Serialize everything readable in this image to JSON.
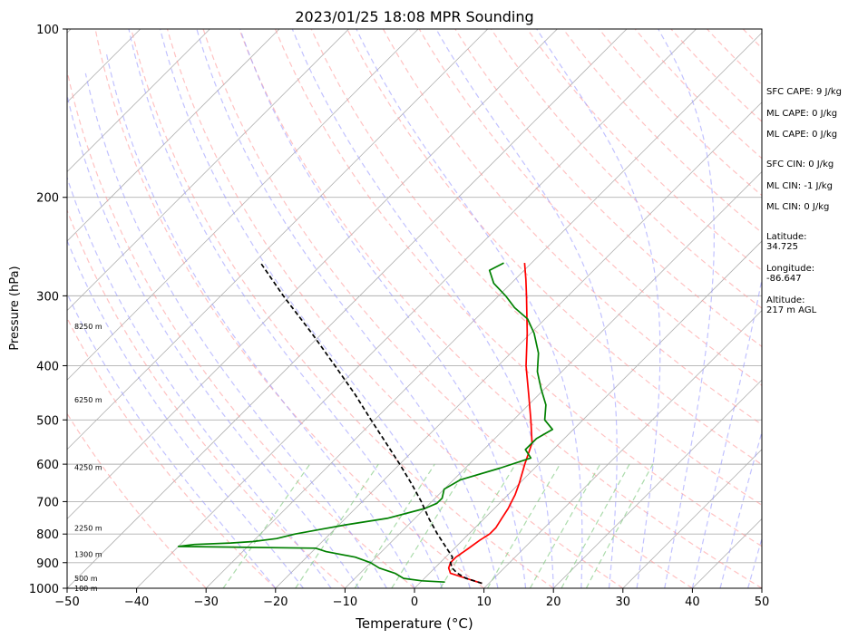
{
  "chart_data": {
    "type": "line",
    "title": "2023/01/25 18:08 MPR Sounding",
    "xlabel": "Temperature (°C)",
    "ylabel": "Pressure (hPa)",
    "xlim": [
      -50,
      50
    ],
    "ylim": [
      1000,
      100
    ],
    "y_scale": "log",
    "skew_t": true,
    "x_ticks": [
      "−50",
      "−40",
      "−30",
      "−20",
      "−10",
      "0",
      "10",
      "20",
      "30",
      "40",
      "50"
    ],
    "y_ticks": [
      "100",
      "200",
      "300",
      "400",
      "500",
      "600",
      "700",
      "800",
      "900",
      "1000"
    ],
    "grid": true,
    "series": [
      {
        "key": "temperature",
        "color": "#ff0000",
        "style": "solid",
        "points": [
          [
            980,
            9
          ],
          [
            960,
            6
          ],
          [
            940,
            3
          ],
          [
            920,
            2
          ],
          [
            900,
            1.5
          ],
          [
            880,
            1.5
          ],
          [
            850,
            2
          ],
          [
            820,
            2.5
          ],
          [
            800,
            3
          ],
          [
            780,
            3
          ],
          [
            750,
            2.5
          ],
          [
            720,
            2
          ],
          [
            700,
            1.5
          ],
          [
            680,
            1
          ],
          [
            650,
            0
          ],
          [
            600,
            -2
          ],
          [
            550,
            -4
          ],
          [
            500,
            -7.5
          ],
          [
            450,
            -11.5
          ],
          [
            400,
            -16
          ],
          [
            350,
            -20.5
          ],
          [
            300,
            -26
          ],
          [
            280,
            -28.5
          ],
          [
            262,
            -31
          ]
        ]
      },
      {
        "key": "dewpoint",
        "color": "#008000",
        "style": "solid",
        "points": [
          [
            975,
            3.5
          ],
          [
            970,
            0
          ],
          [
            960,
            -3
          ],
          [
            940,
            -5
          ],
          [
            920,
            -8
          ],
          [
            900,
            -10
          ],
          [
            880,
            -13
          ],
          [
            860,
            -18
          ],
          [
            848,
            -20
          ],
          [
            842,
            -40
          ],
          [
            835,
            -38
          ],
          [
            830,
            -33
          ],
          [
            825,
            -30
          ],
          [
            815,
            -27
          ],
          [
            800,
            -25
          ],
          [
            785,
            -22
          ],
          [
            770,
            -19
          ],
          [
            750,
            -14
          ],
          [
            720,
            -10
          ],
          [
            705,
            -9
          ],
          [
            690,
            -9
          ],
          [
            665,
            -10
          ],
          [
            640,
            -9
          ],
          [
            610,
            -5
          ],
          [
            585,
            -2
          ],
          [
            565,
            -4
          ],
          [
            540,
            -4
          ],
          [
            520,
            -3
          ],
          [
            500,
            -5.5
          ],
          [
            470,
            -7.5
          ],
          [
            440,
            -10.5
          ],
          [
            410,
            -13.5
          ],
          [
            380,
            -16
          ],
          [
            350,
            -19.5
          ],
          [
            330,
            -22.5
          ],
          [
            315,
            -26
          ],
          [
            300,
            -29
          ],
          [
            285,
            -32.5
          ],
          [
            270,
            -35
          ],
          [
            262,
            -34
          ]
        ]
      },
      {
        "key": "parcel",
        "color": "#000000",
        "style": "dashed",
        "points": [
          [
            980,
            9
          ],
          [
            960,
            6
          ],
          [
            940,
            4
          ],
          [
            920,
            2.5
          ],
          [
            900,
            1.5
          ],
          [
            880,
            1
          ],
          [
            850,
            -1
          ],
          [
            800,
            -4.5
          ],
          [
            750,
            -8
          ],
          [
            700,
            -11.5
          ],
          [
            650,
            -15.5
          ],
          [
            600,
            -20
          ],
          [
            550,
            -25
          ],
          [
            500,
            -30.5
          ],
          [
            450,
            -36.5
          ],
          [
            400,
            -43.5
          ],
          [
            350,
            -51.5
          ],
          [
            300,
            -61
          ],
          [
            262,
            -69
          ]
        ]
      }
    ],
    "height_labels": [
      "100 m",
      "500 m",
      "1300 m",
      "2250 m",
      "4250 m",
      "6250 m",
      "8250 m"
    ],
    "height_label_pressures": [
      1000,
      960,
      870,
      780,
      608,
      460,
      340
    ]
  },
  "side_panel": {
    "sfc_cape": "SFC CAPE: 9 J/kg",
    "ml_cape_1": "ML CAPE: 0 J/kg",
    "ml_cape_2": "ML CAPE: 0 J/kg",
    "sfc_cin": "SFC CIN: 0 J/kg",
    "ml_cin_1": "ML CIN: -1 J/kg",
    "ml_cin_2": "ML CIN: 0 J/kg",
    "latitude_label": "Latitude:",
    "latitude_value": "34.725",
    "longitude_label": "Longitude:",
    "longitude_value": "-86.647",
    "altitude_label": "Altitude:",
    "altitude_value": "217 m AGL"
  },
  "colors": {
    "isotherm": "#b0b0b0",
    "dry_adiabat": "#ff9999",
    "moist_adiabat": "#9999ff",
    "mixing_ratio": "#88cc88",
    "temperature": "#ff0000",
    "dewpoint": "#008000",
    "parcel": "#000000"
  }
}
